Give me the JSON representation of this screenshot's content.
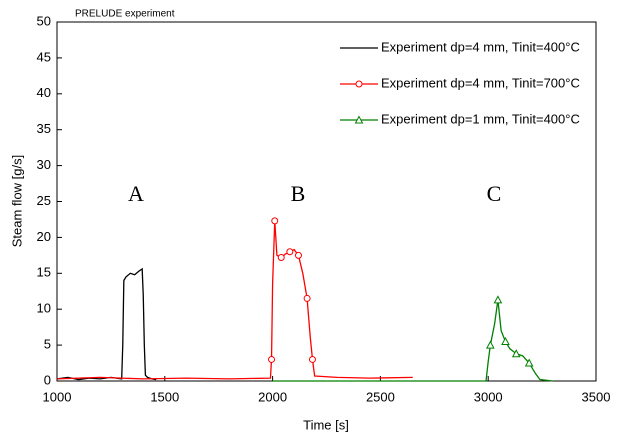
{
  "chart_data": {
    "type": "line",
    "title": "PRELUDE experiment",
    "x_label": "Time [s]",
    "y_label": "Steam flow [g/s]",
    "xlim": [
      1000,
      3500
    ],
    "xticks": [
      1000,
      1500,
      2000,
      2500,
      3000,
      3500
    ],
    "ylim": [
      0,
      50
    ],
    "yticks": [
      0,
      5,
      10,
      15,
      20,
      25,
      30,
      35,
      40,
      45,
      50
    ],
    "legend": "upper right",
    "annotations": [
      "A",
      "B",
      "C"
    ],
    "series": [
      {
        "name": "Experiment dp=4 mm, Tinit=400°C",
        "color": "#000000",
        "marker": "none",
        "x": [
          1000,
          1050,
          1100,
          1150,
          1200,
          1250,
          1300,
          1305,
          1310,
          1320,
          1340,
          1360,
          1380,
          1395,
          1400,
          1405,
          1410,
          1420,
          1440,
          1460
        ],
        "values": [
          0.3,
          0.5,
          0.2,
          0.4,
          0.3,
          0.5,
          0.3,
          5,
          14,
          14.5,
          15,
          14.8,
          15.3,
          15.6,
          12,
          5,
          0.8,
          0.5,
          0.3,
          0.2
        ]
      },
      {
        "name": "Experiment dp=4 mm, Tinit=700°C",
        "color": "#ff0000",
        "marker": "circle",
        "x": [
          1000,
          1200,
          1400,
          1600,
          1800,
          1990,
          1995,
          2000,
          2010,
          2020,
          2040,
          2060,
          2080,
          2100,
          2120,
          2140,
          2160,
          2175,
          2185,
          2195,
          2300,
          2450,
          2650
        ],
        "values": [
          0.3,
          0.5,
          0.3,
          0.4,
          0.3,
          0.4,
          3,
          13.5,
          22.3,
          17.5,
          17.2,
          17.7,
          18,
          18.3,
          17.5,
          15,
          11.5,
          6,
          3,
          0.7,
          0.5,
          0.4,
          0.5
        ]
      },
      {
        "name": "Experiment dp=1 mm, Tinit=400°C",
        "color": "#008000",
        "marker": "triangle",
        "x": [
          2000,
          2500,
          2990,
          3000,
          3010,
          3030,
          3045,
          3060,
          3080,
          3100,
          3130,
          3160,
          3190,
          3220,
          3240,
          3300
        ],
        "values": [
          0,
          0,
          0,
          2.7,
          5,
          8,
          11.3,
          7,
          5.5,
          4.5,
          3.8,
          3.5,
          2.5,
          1,
          0.2,
          0
        ]
      }
    ]
  }
}
